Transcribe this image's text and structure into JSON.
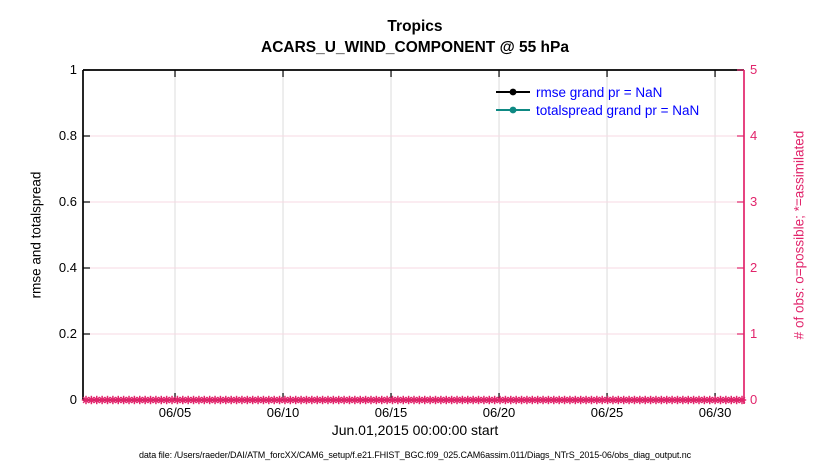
{
  "chart_data": {
    "type": "line",
    "title": "Tropics",
    "subtitle": "ACARS_U_WIND_COMPONENT @ 55 hPa",
    "xlabel": "Jun.01,2015 00:00:00 start",
    "caption": "data file: /Users/raeder/DAI/ATM_forcXX/CAM6_setup/f.e21.FHIST_BGC.f09_025.CAM6assim.011/Diags_NTrS_2015-06/obs_diag_output.nc",
    "left_axis": {
      "label": "rmse and totalspread",
      "lim": [
        0,
        1
      ],
      "ticks": [
        "0",
        "0.2",
        "0.4",
        "0.6",
        "0.8",
        "1"
      ],
      "color": "#000000",
      "grid": true,
      "grid_color": "#f7d9e3"
    },
    "right_axis": {
      "label": "# of obs: o=possible; *=assimilated",
      "lim": [
        0,
        5
      ],
      "ticks": [
        "0",
        "1",
        "2",
        "3",
        "4",
        "5"
      ],
      "color": "#e1246b"
    },
    "x_axis": {
      "ticks": [
        {
          "label": "06/05",
          "f": 0.1392
        },
        {
          "label": "06/10",
          "f": 0.3026
        },
        {
          "label": "06/15",
          "f": 0.466
        },
        {
          "label": "06/20",
          "f": 0.6294
        },
        {
          "label": "06/25",
          "f": 0.7928
        },
        {
          "label": "06/30",
          "f": 0.9562
        }
      ],
      "grid": true,
      "grid_color": "#dcdcdc"
    },
    "legend": {
      "position": "top-right-inside",
      "text_color": "#0000ff",
      "entries": [
        {
          "label": "rmse grand pr = NaN",
          "color": "#000000",
          "marker": "circle"
        },
        {
          "label": "totalspread grand pr = NaN",
          "color": "#0e8983",
          "marker": "circle"
        }
      ]
    },
    "series": [
      {
        "name": "rmse",
        "grand_pr": "NaN",
        "values": []
      },
      {
        "name": "totalspread",
        "grand_pr": "NaN",
        "values": []
      }
    ],
    "obs_markers": {
      "marker": "*",
      "color": "#e1246b",
      "value": 0,
      "count": 123
    }
  }
}
